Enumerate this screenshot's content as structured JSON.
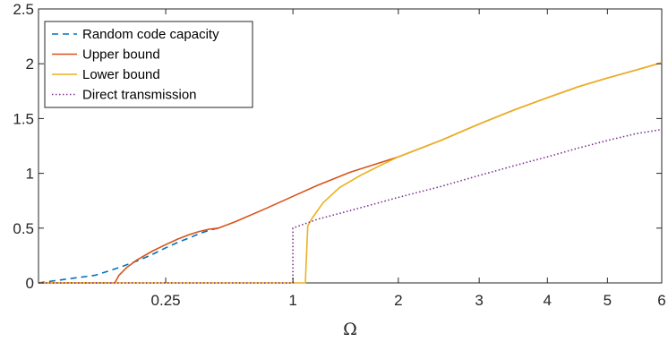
{
  "chart_data": {
    "type": "line",
    "title": "",
    "xlabel": "Ω",
    "ylabel": "",
    "xlim": [
      0,
      6
    ],
    "ylim": [
      0,
      2.5
    ],
    "grid": false,
    "legend_position": "top-left",
    "x_scale": "sqrt",
    "x_ticks": [
      0.25,
      1,
      2,
      3,
      4,
      5,
      6
    ],
    "x_tick_labels": [
      "0.25",
      "1",
      "2",
      "3",
      "4",
      "5",
      "6"
    ],
    "y_ticks": [
      0,
      0.5,
      1,
      1.5,
      2,
      2.5
    ],
    "y_tick_labels": [
      "0",
      "0.5",
      "1",
      "1.5",
      "2",
      "2.5"
    ],
    "series": [
      {
        "name": "Random code capacity",
        "color": "#0072BD",
        "style": "dashed",
        "x": [
          0,
          0.05,
          0.1,
          0.15,
          0.2,
          0.25,
          0.3,
          0.35,
          0.4,
          0.45,
          0.5
        ],
        "y": [
          0,
          0.07,
          0.14,
          0.2,
          0.26,
          0.32,
          0.37,
          0.41,
          0.45,
          0.48,
          0.5
        ]
      },
      {
        "name": "Upper bound",
        "color": "#D95319",
        "style": "solid",
        "x": [
          0,
          0.09,
          0.1,
          0.12,
          0.15,
          0.2,
          0.25,
          0.3,
          0.35,
          0.4,
          0.45,
          0.5,
          0.6,
          0.8,
          1.0,
          1.2,
          1.5,
          2,
          2.5,
          3,
          3.5,
          4,
          4.5,
          5,
          5.5,
          6
        ],
        "y": [
          0,
          0,
          0.07,
          0.14,
          0.21,
          0.29,
          0.35,
          0.4,
          0.44,
          0.47,
          0.49,
          0.5,
          0.56,
          0.68,
          0.79,
          0.89,
          1.01,
          1.15,
          1.3,
          1.45,
          1.58,
          1.69,
          1.79,
          1.87,
          1.94,
          2.01
        ]
      },
      {
        "name": "Lower bound",
        "color": "#EDB120",
        "style": "solid",
        "x": [
          0,
          1.1,
          1.12,
          1.15,
          1.25,
          1.4,
          1.6,
          1.8,
          2,
          2.5,
          3,
          3.5,
          4,
          4.5,
          5,
          5.5,
          6
        ],
        "y": [
          0,
          0,
          0.52,
          0.58,
          0.73,
          0.87,
          0.98,
          1.07,
          1.15,
          1.3,
          1.45,
          1.58,
          1.69,
          1.79,
          1.87,
          1.94,
          2.01
        ]
      },
      {
        "name": "Direct transmission",
        "color": "#7E2F8E",
        "style": "dotted",
        "x": [
          0,
          1.0,
          1.0,
          1.2,
          1.5,
          2,
          2.5,
          3,
          3.5,
          4,
          4.5,
          5,
          5.5,
          6
        ],
        "y": [
          0,
          0,
          0.5,
          0.58,
          0.66,
          0.78,
          0.88,
          0.98,
          1.07,
          1.15,
          1.23,
          1.3,
          1.36,
          1.4
        ]
      }
    ]
  }
}
